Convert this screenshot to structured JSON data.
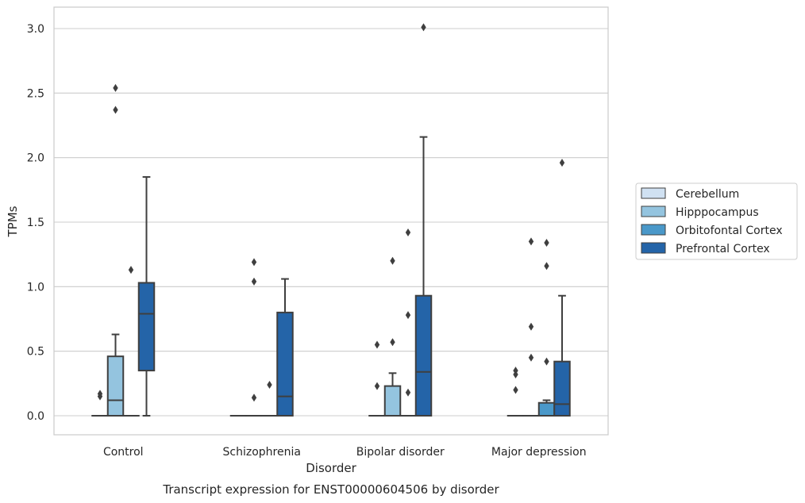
{
  "chart_data": {
    "type": "box",
    "xlabel": "Disorder",
    "ylabel": "TPMs",
    "caption": "Transcript expression for ENST00000604506 by disorder",
    "categories": [
      "Control",
      "Schizophrenia",
      "Bipolar disorder",
      "Major depression"
    ],
    "ylim": [
      -0.15,
      3.15
    ],
    "yticks": [
      0.0,
      0.5,
      1.0,
      1.5,
      2.0,
      2.5,
      3.0
    ],
    "ytick_labels": [
      "0.0",
      "0.5",
      "1.0",
      "1.5",
      "2.0",
      "2.5",
      "3.0"
    ],
    "grid": "horizontal",
    "legend_position": "right",
    "series": [
      {
        "name": "Cerebellum",
        "color": "#d0e1f2",
        "boxes": [
          {
            "q1": 0,
            "median": 0,
            "q3": 0,
            "whisker_low": 0,
            "whisker_high": 0,
            "outliers": [
              0.15,
              0.17
            ]
          },
          {
            "q1": 0,
            "median": 0,
            "q3": 0,
            "whisker_low": 0,
            "whisker_high": 0,
            "outliers": []
          },
          {
            "q1": 0,
            "median": 0,
            "q3": 0,
            "whisker_low": 0,
            "whisker_high": 0,
            "outliers": [
              0.23,
              0.55
            ]
          },
          {
            "q1": 0,
            "median": 0,
            "q3": 0,
            "whisker_low": 0,
            "whisker_high": 0,
            "outliers": [
              0.2,
              0.32,
              0.35
            ]
          }
        ]
      },
      {
        "name": "Hipppocampus",
        "color": "#94c4df",
        "boxes": [
          {
            "q1": 0,
            "median": 0.12,
            "q3": 0.46,
            "whisker_low": 0,
            "whisker_high": 0.63,
            "outliers": [
              2.37,
              2.54
            ]
          },
          {
            "q1": 0,
            "median": 0,
            "q3": 0,
            "whisker_low": 0,
            "whisker_high": 0,
            "outliers": [
              0.14,
              1.04,
              1.19
            ]
          },
          {
            "q1": 0,
            "median": 0,
            "q3": 0.23,
            "whisker_low": 0,
            "whisker_high": 0.33,
            "outliers": [
              0.57,
              1.2
            ]
          },
          {
            "q1": 0,
            "median": 0,
            "q3": 0,
            "whisker_low": 0,
            "whisker_high": 0,
            "outliers": [
              0.45,
              0.69,
              1.35
            ]
          }
        ]
      },
      {
        "name": "Orbitofontal Cortex",
        "color": "#4a98c9",
        "boxes": [
          {
            "q1": 0,
            "median": 0,
            "q3": 0,
            "whisker_low": 0,
            "whisker_high": 0,
            "outliers": [
              1.13
            ]
          },
          {
            "q1": 0,
            "median": 0,
            "q3": 0,
            "whisker_low": 0,
            "whisker_high": 0,
            "outliers": [
              0.24
            ]
          },
          {
            "q1": 0,
            "median": 0,
            "q3": 0,
            "whisker_low": 0,
            "whisker_high": 0,
            "outliers": [
              0.18,
              0.78,
              1.42
            ]
          },
          {
            "q1": 0,
            "median": 0,
            "q3": 0.1,
            "whisker_low": 0,
            "whisker_high": 0.12,
            "outliers": [
              0.42,
              1.16,
              1.34
            ]
          }
        ]
      },
      {
        "name": "Prefrontal Cortex",
        "color": "#2464a8",
        "boxes": [
          {
            "q1": 0.35,
            "median": 0.79,
            "q3": 1.03,
            "whisker_low": 0,
            "whisker_high": 1.85,
            "outliers": []
          },
          {
            "q1": 0,
            "median": 0.15,
            "q3": 0.8,
            "whisker_low": 0,
            "whisker_high": 1.06,
            "outliers": []
          },
          {
            "q1": 0,
            "median": 0.34,
            "q3": 0.93,
            "whisker_low": 0,
            "whisker_high": 2.16,
            "outliers": [
              3.01
            ]
          },
          {
            "q1": 0,
            "median": 0.09,
            "q3": 0.42,
            "whisker_low": 0,
            "whisker_high": 0.93,
            "outliers": [
              1.96
            ]
          }
        ]
      }
    ]
  }
}
